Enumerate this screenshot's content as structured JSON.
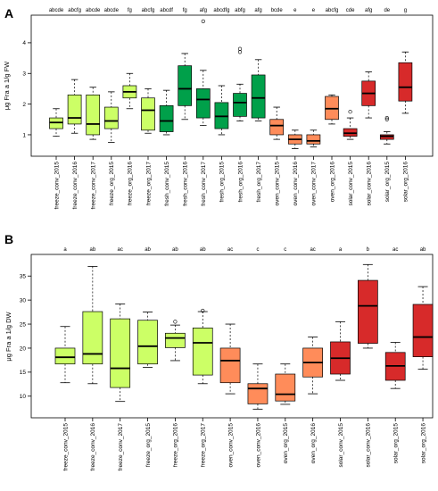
{
  "colors": {
    "freeze": "#ccff66",
    "fresh": "#00a04a",
    "fresh_light": "#7fe07f",
    "oven": "#ff8c5a",
    "solar": "#d72a2a"
  },
  "chart_data": [
    {
      "panel": "A",
      "type": "boxplot",
      "ylabel": "μg Fra a 1/g FW",
      "ylim": [
        0.3,
        4.9
      ],
      "yticks": [
        1,
        2,
        3,
        4
      ],
      "categories": [
        "freeze_conv_2015",
        "freeze_conv_2016",
        "freeze_conv_2017",
        "freeze_org_2015",
        "freeze_org_2016",
        "freeze_org_2017",
        "fresh_conv_2015",
        "fresh_conv_2016",
        "fresh_conv_2017",
        "fresh_org_2015",
        "fresh_org_2016",
        "fresh_org_2017",
        "oven_conv_2015",
        "oven_conv_2016",
        "oven_conv_2017",
        "oven_org_2016",
        "solar_conv_2015",
        "solar_conv_2016",
        "solar_org_2015",
        "solar_org_2016"
      ],
      "groups": [
        "abcde",
        "abcfg",
        "abcde",
        "abcde",
        "fg",
        "abcfg",
        "abcdf",
        "fg",
        "afg",
        "abcdfg",
        "abfg",
        "afg",
        "bcde",
        "e",
        "e",
        "abcfg",
        "cde",
        "afg",
        "de",
        "g"
      ],
      "boxes": [
        {
          "min": 0.95,
          "q1": 1.2,
          "median": 1.4,
          "q3": 1.55,
          "max": 1.85,
          "outliers": [],
          "color": "freeze"
        },
        {
          "min": 1.05,
          "q1": 1.35,
          "median": 1.55,
          "q3": 2.3,
          "max": 2.8,
          "outliers": [],
          "color": "freeze"
        },
        {
          "min": 0.85,
          "q1": 1.0,
          "median": 1.35,
          "q3": 2.3,
          "max": 2.55,
          "outliers": [],
          "color": "freeze"
        },
        {
          "min": 0.75,
          "q1": 1.2,
          "median": 1.45,
          "q3": 1.9,
          "max": 2.4,
          "outliers": [],
          "color": "freeze"
        },
        {
          "min": 1.85,
          "q1": 2.2,
          "median": 2.4,
          "q3": 2.6,
          "max": 3.0,
          "outliers": [],
          "color": "freeze"
        },
        {
          "min": 1.05,
          "q1": 1.15,
          "median": 1.8,
          "q3": 2.2,
          "max": 2.5,
          "outliers": [],
          "color": "freeze"
        },
        {
          "min": 1.0,
          "q1": 1.1,
          "median": 1.45,
          "q3": 1.95,
          "max": 2.45,
          "outliers": [],
          "color": "fresh"
        },
        {
          "min": 1.5,
          "q1": 1.95,
          "median": 2.5,
          "q3": 3.25,
          "max": 3.65,
          "outliers": [],
          "color": "fresh"
        },
        {
          "min": 1.3,
          "q1": 1.55,
          "median": 2.15,
          "q3": 2.5,
          "max": 3.1,
          "outliers": [
            4.7
          ],
          "color": "fresh"
        },
        {
          "min": 1.0,
          "q1": 1.2,
          "median": 1.6,
          "q3": 2.05,
          "max": 2.6,
          "outliers": [],
          "color": "fresh"
        },
        {
          "min": 1.45,
          "q1": 1.6,
          "median": 2.05,
          "q3": 2.35,
          "max": 2.65,
          "outliers": [
            3.7,
            3.8
          ],
          "color": "fresh"
        },
        {
          "min": 1.45,
          "q1": 1.55,
          "median": 2.2,
          "q3": 2.95,
          "max": 3.45,
          "outliers": [],
          "color": "fresh"
        },
        {
          "min": 0.85,
          "q1": 1.0,
          "median": 1.3,
          "q3": 1.5,
          "max": 1.9,
          "outliers": [],
          "color": "oven"
        },
        {
          "min": 0.55,
          "q1": 0.7,
          "median": 0.85,
          "q3": 1.0,
          "max": 1.15,
          "outliers": [],
          "color": "oven"
        },
        {
          "min": 0.6,
          "q1": 0.7,
          "median": 0.8,
          "q3": 1.0,
          "max": 1.15,
          "outliers": [],
          "color": "oven"
        },
        {
          "min": 1.35,
          "q1": 1.5,
          "median": 1.85,
          "q3": 2.25,
          "max": 2.3,
          "outliers": [],
          "color": "oven"
        },
        {
          "min": 0.85,
          "q1": 0.95,
          "median": 1.05,
          "q3": 1.2,
          "max": 1.55,
          "outliers": [
            1.75
          ],
          "color": "solar"
        },
        {
          "min": 1.55,
          "q1": 1.95,
          "median": 2.35,
          "q3": 2.75,
          "max": 3.05,
          "outliers": [],
          "color": "solar"
        },
        {
          "min": 0.7,
          "q1": 0.85,
          "median": 0.95,
          "q3": 1.0,
          "max": 1.1,
          "outliers": [
            1.5,
            1.55
          ],
          "color": "solar"
        },
        {
          "min": 1.7,
          "q1": 2.1,
          "median": 2.55,
          "q3": 3.35,
          "max": 3.7,
          "outliers": [],
          "color": "solar"
        }
      ]
    },
    {
      "panel": "B",
      "type": "boxplot",
      "ylabel": "μg Fra a 1/g DW",
      "ylim": [
        5.5,
        39.5
      ],
      "yticks": [
        10,
        15,
        20,
        25,
        30,
        35
      ],
      "categories": [
        "freeze_conv_2015",
        "freeze_conv_2016",
        "freeze_conv_2017",
        "freeze_org_2015",
        "freeze_org_2016",
        "freeze_org_2017",
        "oven_conv_2015",
        "oven_conv_2016",
        "oven_org_2015",
        "oven_org_2016",
        "solar_conv_2015",
        "solar_conv_2016",
        "solar_org_2015",
        "solar_org_2016"
      ],
      "groups": [
        "a",
        "ab",
        "ac",
        "ab",
        "ab",
        "ab",
        "ac",
        "c",
        "c",
        "ac",
        "a",
        "b",
        "ac",
        "ab"
      ],
      "boxes": [
        {
          "min": 12.8,
          "q1": 16.7,
          "median": 18.1,
          "q3": 20.0,
          "max": 24.5,
          "outliers": [],
          "color": "freeze"
        },
        {
          "min": 12.6,
          "q1": 16.7,
          "median": 18.8,
          "q3": 27.6,
          "max": 37.0,
          "outliers": [],
          "color": "freeze"
        },
        {
          "min": 8.9,
          "q1": 11.8,
          "median": 15.8,
          "q3": 26.1,
          "max": 29.2,
          "outliers": [],
          "color": "freeze"
        },
        {
          "min": 16.0,
          "q1": 16.7,
          "median": 20.4,
          "q3": 25.8,
          "max": 27.5,
          "outliers": [],
          "color": "freeze"
        },
        {
          "min": 17.4,
          "q1": 20.1,
          "median": 22.1,
          "q3": 23.1,
          "max": 24.8,
          "outliers": [
            25.5
          ],
          "color": "freeze"
        },
        {
          "min": 12.6,
          "q1": 14.4,
          "median": 21.1,
          "q3": 24.2,
          "max": 27.6,
          "outliers": [
            27.8
          ],
          "color": "freeze"
        },
        {
          "min": 10.5,
          "q1": 12.8,
          "median": 17.4,
          "q3": 20.0,
          "max": 25.0,
          "outliers": [],
          "color": "oven"
        },
        {
          "min": 7.3,
          "q1": 8.4,
          "median": 11.6,
          "q3": 12.6,
          "max": 16.7,
          "outliers": [],
          "color": "oven"
        },
        {
          "min": 8.3,
          "q1": 9.0,
          "median": 10.4,
          "q3": 14.6,
          "max": 16.7,
          "outliers": [],
          "color": "oven"
        },
        {
          "min": 10.5,
          "q1": 14.0,
          "median": 17.0,
          "q3": 20.0,
          "max": 22.3,
          "outliers": [],
          "color": "oven"
        },
        {
          "min": 13.3,
          "q1": 14.6,
          "median": 17.9,
          "q3": 21.3,
          "max": 25.5,
          "outliers": [],
          "color": "solar"
        },
        {
          "min": 20.0,
          "q1": 21.0,
          "median": 28.8,
          "q3": 34.1,
          "max": 37.4,
          "outliers": [],
          "color": "solar"
        },
        {
          "min": 11.6,
          "q1": 13.3,
          "median": 16.3,
          "q3": 19.1,
          "max": 21.2,
          "outliers": [],
          "color": "solar"
        },
        {
          "min": 15.6,
          "q1": 18.2,
          "median": 22.3,
          "q3": 29.1,
          "max": 32.8,
          "outliers": [],
          "color": "solar"
        }
      ]
    }
  ]
}
